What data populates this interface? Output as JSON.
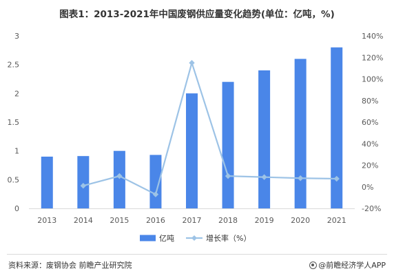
{
  "title": "图表1：2013-2021年中国废钢供应量变化趋势(单位：亿吨，%)",
  "source": "资料来源：废钢协会 前瞻产业研究院",
  "brand": "@前瞻经济学人APP",
  "chart_data": {
    "type": "bar",
    "categories": [
      "2013",
      "2014",
      "2015",
      "2016",
      "2017",
      "2018",
      "2019",
      "2020",
      "2021"
    ],
    "series": [
      {
        "name": "亿吨",
        "type": "bar",
        "axis": "left",
        "color": "#4a86e8",
        "values": [
          0.9,
          0.91,
          1.0,
          0.93,
          2.0,
          2.2,
          2.4,
          2.6,
          2.8
        ]
      },
      {
        "name": "增长率（%）",
        "type": "line",
        "axis": "right",
        "color": "#9dc3e6",
        "values": [
          null,
          1,
          10,
          -7,
          115,
          10,
          9,
          8,
          7.5
        ]
      }
    ],
    "y_left": {
      "ylim": [
        0,
        3
      ],
      "ticks": [
        0,
        0.5,
        1,
        1.5,
        2,
        2.5,
        3
      ],
      "tick_labels": [
        "0",
        "0.5",
        "1",
        "1.5",
        "2",
        "2.5",
        "3"
      ]
    },
    "y_right": {
      "ylim": [
        -20,
        140
      ],
      "ticks": [
        -20,
        0,
        20,
        40,
        60,
        80,
        100,
        120,
        140
      ],
      "tick_labels": [
        "-20%",
        "0%",
        "20%",
        "40%",
        "60%",
        "80%",
        "100%",
        "120%",
        "140%"
      ]
    },
    "grid": false,
    "legend_position": "bottom"
  }
}
